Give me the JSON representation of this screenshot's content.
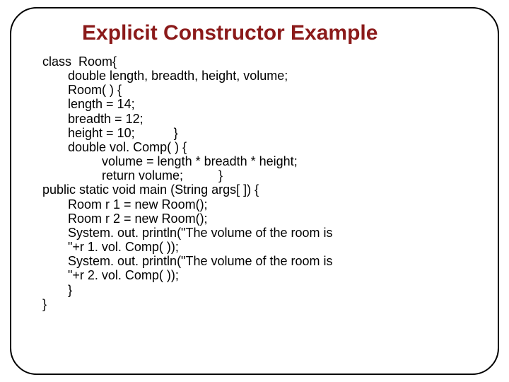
{
  "title": "Explicit Constructor Example",
  "title_color": "#8b1a1a",
  "title_fontsize": 30,
  "body_fontsize": 18,
  "border_color": "#000000",
  "border_radius": 38,
  "background_color": "#ffffff",
  "code": {
    "lines": [
      {
        "indent": "i0",
        "text": "class  Room{"
      },
      {
        "indent": "i1",
        "text": "double length, breadth, height, volume;"
      },
      {
        "indent": "i1",
        "text": "Room( ) {"
      },
      {
        "indent": "i1",
        "text": "length = 14;"
      },
      {
        "indent": "i1",
        "text": "breadth = 12;"
      },
      {
        "indent": "i1",
        "text": "height = 10;           }"
      },
      {
        "indent": "i1",
        "text": "double vol. Comp( ) {"
      },
      {
        "indent": "i2",
        "text": "volume = length * breadth * height;"
      },
      {
        "indent": "i2",
        "text": "return volume;          }"
      },
      {
        "indent": "i0",
        "text": "public static void main (String args[ ]) {"
      },
      {
        "indent": "i1",
        "text": "Room r 1 = new Room();"
      },
      {
        "indent": "i1",
        "text": "Room r 2 = new Room();"
      },
      {
        "indent": "i1",
        "text": "System. out. println(\"The volume of the room is"
      },
      {
        "indent": "i1",
        "text": "\"+r 1. vol. Comp( ));"
      },
      {
        "indent": "i1",
        "text": "System. out. println(\"The volume of the room is"
      },
      {
        "indent": "i1",
        "text": "\"+r 2. vol. Comp( ));"
      },
      {
        "indent": "i1",
        "text": "}"
      },
      {
        "indent": "i0",
        "text": "}"
      }
    ]
  }
}
